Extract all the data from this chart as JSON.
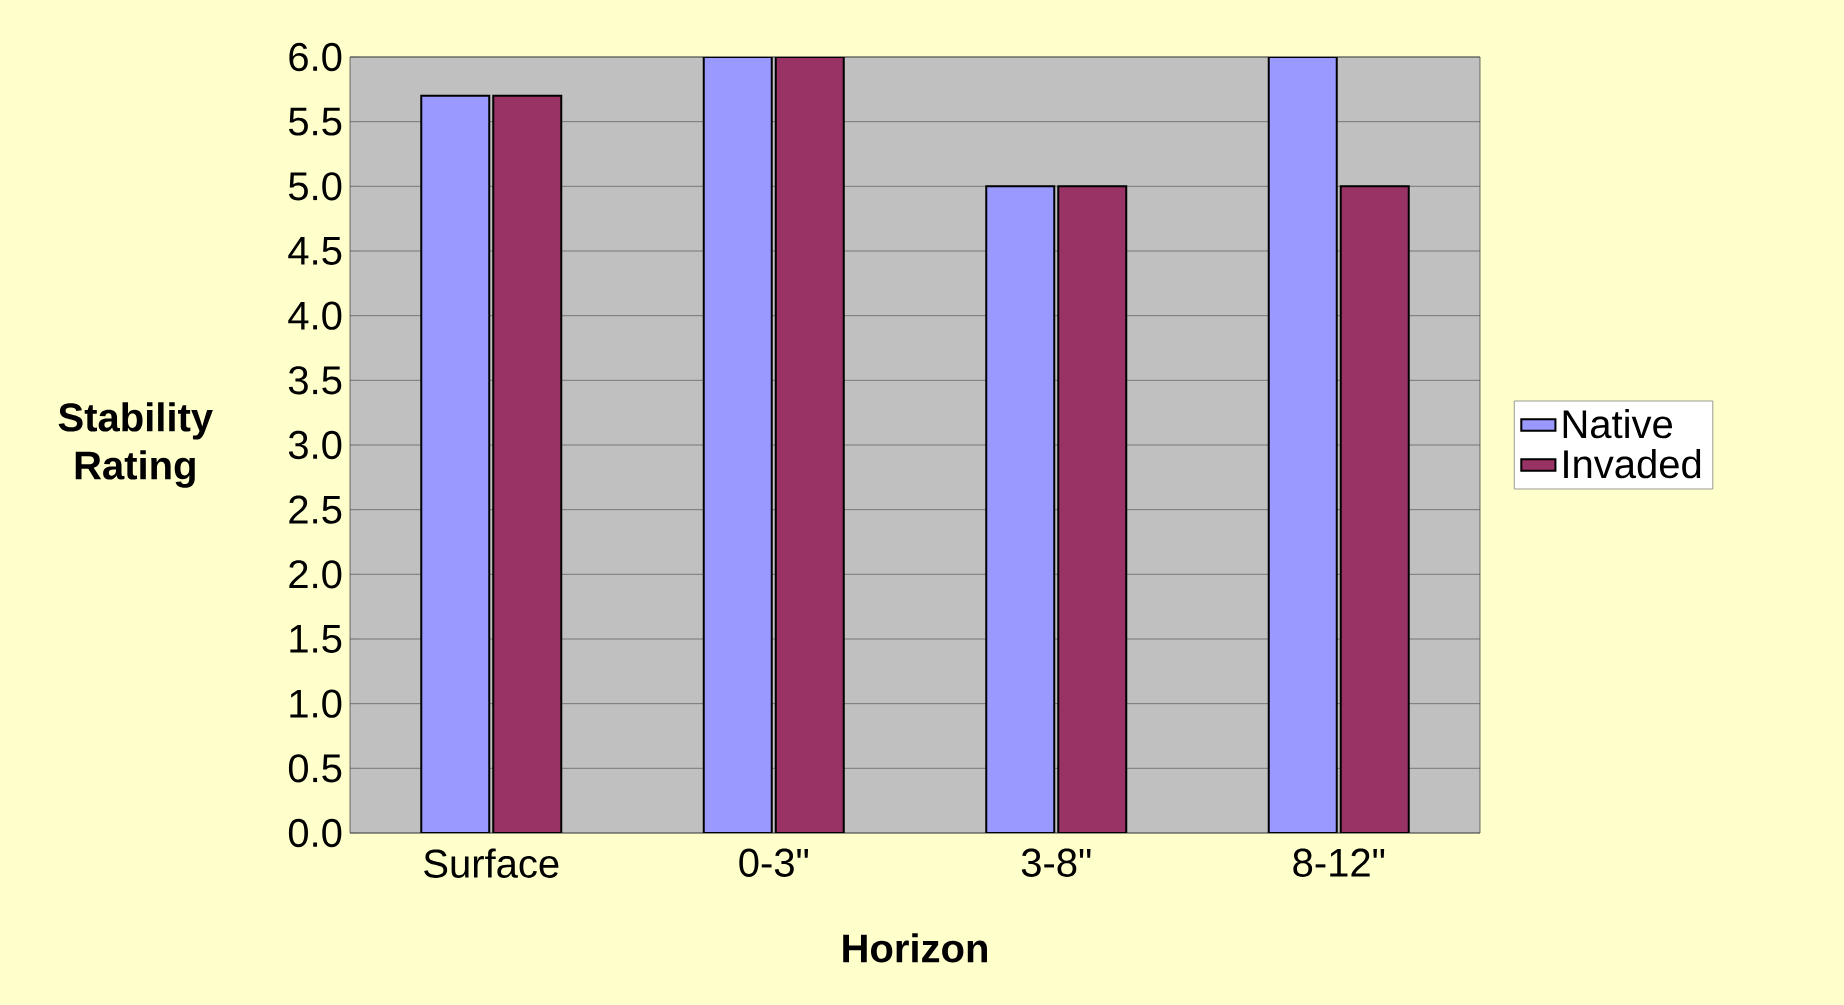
{
  "chart_data": {
    "type": "bar",
    "xlabel": "Horizon",
    "ylabel": "Stability Rating",
    "categories": [
      "Surface",
      "0-3\"",
      "3-8\"",
      "8-12\""
    ],
    "series": [
      {
        "name": "Native",
        "color": "#9999ff",
        "values": [
          5.7,
          6.0,
          5.0,
          6.0
        ]
      },
      {
        "name": "Invaded",
        "color": "#993366",
        "values": [
          5.7,
          6.0,
          5.0,
          5.0
        ]
      }
    ],
    "ylim": [
      0,
      6
    ],
    "yticks": [
      {
        "value": 0,
        "label": "0.0"
      },
      {
        "value": 0.5,
        "label": "0.5"
      },
      {
        "value": 1,
        "label": "1.0"
      },
      {
        "value": 1.5,
        "label": "1.5"
      },
      {
        "value": 2,
        "label": "2.0"
      },
      {
        "value": 2.5,
        "label": "2.5"
      },
      {
        "value": 3,
        "label": "3.0"
      },
      {
        "value": 3.5,
        "label": "3.5"
      },
      {
        "value": 4,
        "label": "4.0"
      },
      {
        "value": 4.5,
        "label": "4.5"
      },
      {
        "value": 5,
        "label": "5.0"
      },
      {
        "value": 5.5,
        "label": "5.5"
      },
      {
        "value": 6,
        "label": "6.0"
      }
    ],
    "grid": "y",
    "legend": "right"
  }
}
